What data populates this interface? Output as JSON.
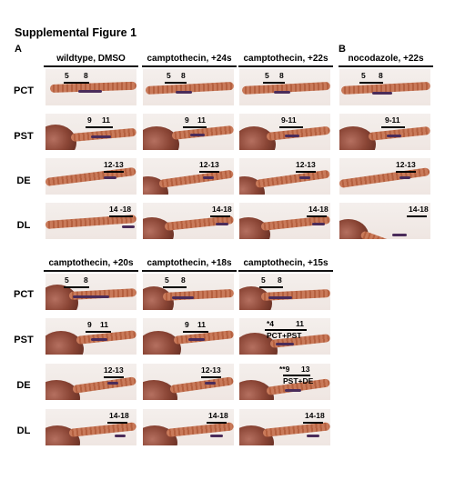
{
  "figure_title": "Supplemental Figure 1",
  "panel_a": "A",
  "panel_b": "B",
  "top_columns": [
    "wildtype, DMSO",
    "camptothecin, +24s",
    "camptothecin, +22s",
    "nocodazole, +22s"
  ],
  "bottom_columns": [
    "camptothecin, +20s",
    "camptothecin, +18s",
    "camptothecin, +15s"
  ],
  "rows": [
    "PCT",
    "PST",
    "DE",
    "DL"
  ],
  "labels": {
    "pct_a": "5",
    "pct_b": "8",
    "pst_a": "9",
    "pst_b": "11",
    "pst_range": "9-11",
    "de": "12-13",
    "dl_wt": "14 -18",
    "dl": "14-18",
    "fused_pst_a": "*4",
    "fused_pst_b": "11",
    "fused_pst_note": "PCT+PST",
    "fused_de_a": "**9",
    "fused_de_b": "13",
    "fused_de_note": "PST+DE"
  }
}
